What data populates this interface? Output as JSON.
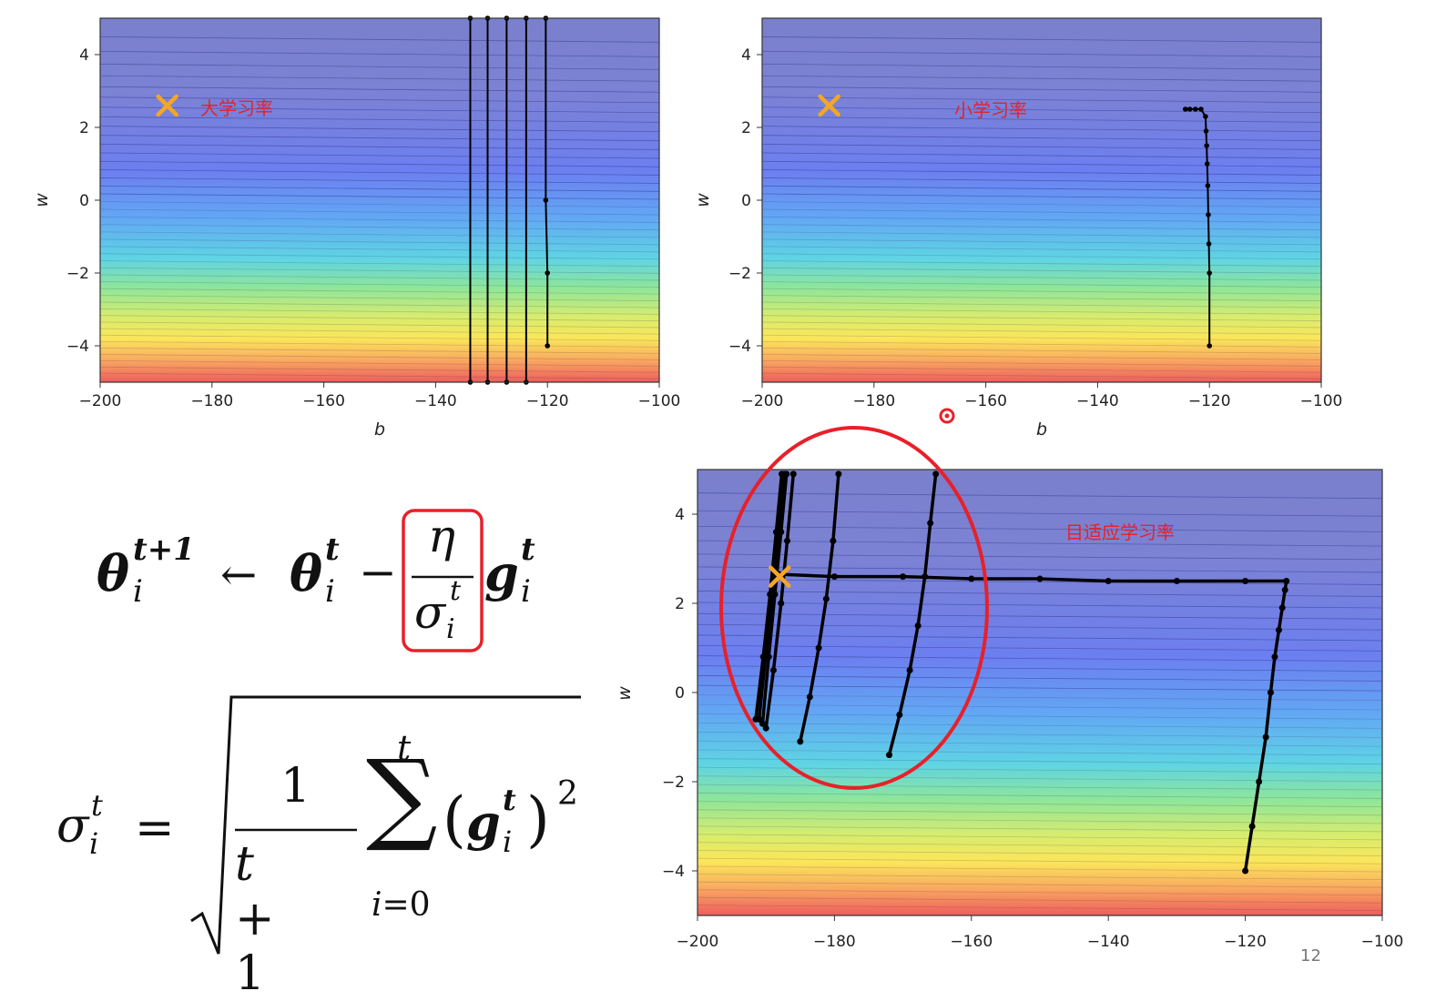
{
  "chart_data": [
    {
      "type": "line",
      "xlabel": "b",
      "ylabel": "w",
      "xlim": [
        -200,
        -100
      ],
      "ylim": [
        -5,
        5
      ],
      "xticks": [
        -200,
        -180,
        -160,
        -140,
        -120,
        -100
      ],
      "yticks": [
        -4,
        -2,
        0,
        2,
        4
      ],
      "annotation": "大学习率",
      "target": {
        "b": -188,
        "w": 2.6
      },
      "series": [
        {
          "x": [
            -120,
            -120,
            -120.3,
            -120.3
          ],
          "y": [
            -4,
            -2,
            0,
            5
          ]
        },
        {
          "x": [
            -123.8,
            -123.8
          ],
          "y": [
            -5,
            5
          ]
        },
        {
          "x": [
            -127.3,
            -127.3
          ],
          "y": [
            -5,
            5
          ]
        },
        {
          "x": [
            -130.7,
            -130.7
          ],
          "y": [
            -5,
            5
          ]
        },
        {
          "x": [
            -133.8,
            -133.8
          ],
          "y": [
            -5,
            5
          ]
        }
      ]
    },
    {
      "type": "line",
      "xlabel": "b",
      "ylabel": "w",
      "xlim": [
        -200,
        -100
      ],
      "ylim": [
        -5,
        5
      ],
      "xticks": [
        -200,
        -180,
        -160,
        -140,
        -120,
        -100
      ],
      "yticks": [
        -4,
        -2,
        0,
        2,
        4
      ],
      "annotation": "小学习率",
      "target": {
        "b": -188,
        "w": 2.6
      },
      "series": [
        {
          "x": [
            -120,
            -120,
            -120.1,
            -120.2,
            -120.3,
            -120.4,
            -120.5,
            -120.6,
            -120.7,
            -121.5,
            -122.5,
            -123.5,
            -124.3
          ],
          "y": [
            -4,
            -2,
            -1.2,
            -0.4,
            0.4,
            1.0,
            1.5,
            1.9,
            2.3,
            2.5,
            2.5,
            2.5,
            2.5
          ]
        }
      ]
    },
    {
      "type": "line",
      "ylabel": "w",
      "xlim": [
        -200,
        -100
      ],
      "ylim": [
        -5,
        5
      ],
      "xticks": [
        -200,
        -180,
        -160,
        -140,
        -120,
        -100
      ],
      "yticks": [
        -4,
        -2,
        0,
        2,
        4
      ],
      "annotation": "目适应学习率",
      "target": {
        "b": -188,
        "w": 2.6
      },
      "series": [
        {
          "x": [
            -120,
            -119,
            -118,
            -117,
            -116.3,
            -115.7,
            -115.1,
            -114.6,
            -114.2,
            -114,
            -120,
            -130,
            -140,
            -150,
            -160,
            -170,
            -180,
            -188
          ],
          "y": [
            -4,
            -3,
            -2,
            -1,
            0,
            0.8,
            1.4,
            1.9,
            2.3,
            2.5,
            2.5,
            2.5,
            2.5,
            2.55,
            2.55,
            2.6,
            2.6,
            2.65
          ]
        },
        {
          "x": [
            -172,
            -170.5,
            -169,
            -167.8,
            -166.8,
            -166,
            -165.2
          ],
          "y": [
            -1.4,
            -0.5,
            0.5,
            1.5,
            2.6,
            3.8,
            4.9
          ]
        },
        {
          "x": [
            -185,
            -183.6,
            -182.3,
            -181.2,
            -180.2,
            -179.4
          ],
          "y": [
            -1.1,
            -0.1,
            1.0,
            2.1,
            3.4,
            4.9
          ]
        },
        {
          "x": [
            -190,
            -188.9,
            -187.8,
            -186.9,
            -186
          ],
          "y": [
            -0.8,
            0.5,
            2.0,
            3.4,
            4.9
          ]
        },
        {
          "x": [
            -191.5,
            -190.4,
            -189.4,
            -188.5,
            -187.7
          ],
          "y": [
            -0.6,
            0.8,
            2.2,
            3.6,
            4.9
          ]
        },
        {
          "x": [
            -191,
            -190,
            -189,
            -188.1,
            -187.3
          ],
          "y": [
            -0.6,
            0.9,
            2.3,
            3.6,
            4.9
          ]
        },
        {
          "x": [
            -190.5,
            -189.6,
            -188.7,
            -187.8,
            -187
          ],
          "y": [
            -0.7,
            0.8,
            2.2,
            3.6,
            4.9
          ]
        }
      ]
    }
  ],
  "page_number": "12"
}
